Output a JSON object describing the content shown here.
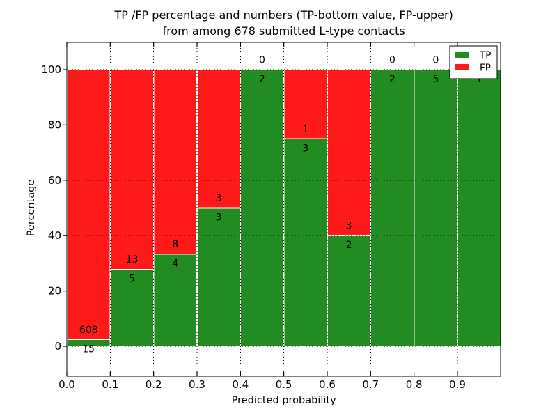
{
  "chart_data": {
    "type": "bar",
    "stacked": true,
    "title": "TP /FP percentage and numbers (TP-bottom value, FP-upper)",
    "subtitle": "from among 678 submitted L-type contacts",
    "xlabel": "Predicted probability",
    "ylabel": "Percentage",
    "total_submitted": 678,
    "bin_width": 0.1,
    "x_tick_labels": [
      "0.0",
      "0.1",
      "0.2",
      "0.3",
      "0.4",
      "0.5",
      "0.6",
      "0.7",
      "0.8",
      "0.9"
    ],
    "y_ticks": [
      0,
      20,
      40,
      60,
      80,
      100
    ],
    "y_tick_labels": [
      "0",
      "20",
      "40",
      "60",
      "80",
      "100"
    ],
    "xlim": [
      0.0,
      1.0
    ],
    "ylim_display": [
      -10.8,
      109.8
    ],
    "grid": {
      "style": "dotted",
      "color": "#000000"
    },
    "legend": {
      "position": "upper right",
      "entries": [
        {
          "label": "TP",
          "color": "#228B22"
        },
        {
          "label": "FP",
          "color": "#FF1A1A"
        }
      ]
    },
    "series": [
      {
        "name": "TP",
        "stack_position": "bottom",
        "color": "#228B22",
        "counts": [
          15,
          5,
          4,
          3,
          2,
          3,
          2,
          2,
          5,
          1
        ]
      },
      {
        "name": "FP",
        "stack_position": "top",
        "color": "#FF1A1A",
        "counts": [
          608,
          13,
          8,
          3,
          0,
          1,
          3,
          0,
          0,
          0
        ]
      }
    ],
    "tp_percent_of_bin": [
      2.4,
      27.8,
      33.3,
      50.0,
      100.0,
      75.0,
      40.0,
      100.0,
      100.0,
      100.0
    ],
    "colors": {
      "tp": "#228B22",
      "fp": "#FF1A1A",
      "background": "#FFFFFF",
      "frame": "#000000"
    }
  }
}
